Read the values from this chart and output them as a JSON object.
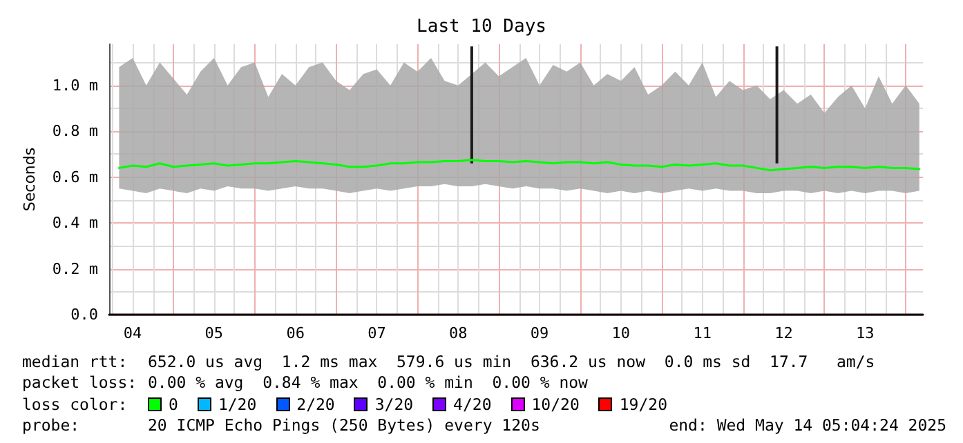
{
  "chart_data": {
    "type": "line",
    "title": "Last 10 Days",
    "ylabel": "Seconds",
    "x": [
      "2025-05-04T08:00",
      "2025-05-04T12:00",
      "2025-05-04T16:00",
      "2025-05-04T20:00",
      "2025-05-05T00:00",
      "2025-05-05T04:00",
      "2025-05-05T08:00",
      "2025-05-05T12:00",
      "2025-05-05T16:00",
      "2025-05-05T20:00",
      "2025-05-06T00:00",
      "2025-05-06T04:00",
      "2025-05-06T08:00",
      "2025-05-06T12:00",
      "2025-05-06T16:00",
      "2025-05-06T20:00",
      "2025-05-07T00:00",
      "2025-05-07T04:00",
      "2025-05-07T08:00",
      "2025-05-07T12:00",
      "2025-05-07T16:00",
      "2025-05-07T20:00",
      "2025-05-08T00:00",
      "2025-05-08T04:00",
      "2025-05-08T08:00",
      "2025-05-08T12:00",
      "2025-05-08T16:00",
      "2025-05-08T20:00",
      "2025-05-09T00:00",
      "2025-05-09T04:00",
      "2025-05-09T08:00",
      "2025-05-09T12:00",
      "2025-05-09T16:00",
      "2025-05-09T20:00",
      "2025-05-10T00:00",
      "2025-05-10T04:00",
      "2025-05-10T08:00",
      "2025-05-10T12:00",
      "2025-05-10T16:00",
      "2025-05-10T20:00",
      "2025-05-11T00:00",
      "2025-05-11T04:00",
      "2025-05-11T08:00",
      "2025-05-11T12:00",
      "2025-05-11T16:00",
      "2025-05-11T20:00",
      "2025-05-12T00:00",
      "2025-05-12T04:00",
      "2025-05-12T08:00",
      "2025-05-12T12:00",
      "2025-05-12T16:00",
      "2025-05-12T20:00",
      "2025-05-13T00:00",
      "2025-05-13T04:00",
      "2025-05-13T08:00",
      "2025-05-13T12:00",
      "2025-05-13T16:00",
      "2025-05-13T20:00",
      "2025-05-14T00:00",
      "2025-05-14T04:00"
    ],
    "series": [
      {
        "color": "#00ff00",
        "values": [
          0.64,
          0.65,
          0.645,
          0.66,
          0.645,
          0.65,
          0.655,
          0.66,
          0.65,
          0.655,
          0.66,
          0.66,
          0.665,
          0.67,
          0.665,
          0.66,
          0.655,
          0.645,
          0.645,
          0.65,
          0.66,
          0.66,
          0.665,
          0.665,
          0.67,
          0.67,
          0.675,
          0.67,
          0.67,
          0.665,
          0.67,
          0.665,
          0.66,
          0.665,
          0.665,
          0.66,
          0.665,
          0.655,
          0.65,
          0.65,
          0.645,
          0.655,
          0.65,
          0.655,
          0.66,
          0.65,
          0.65,
          0.64,
          0.63,
          0.635,
          0.64,
          0.645,
          0.64,
          0.645,
          0.645,
          0.64,
          0.645,
          0.64,
          0.64,
          0.635
        ],
        "lower": [
          0.55,
          0.54,
          0.53,
          0.55,
          0.54,
          0.53,
          0.55,
          0.54,
          0.56,
          0.55,
          0.55,
          0.54,
          0.55,
          0.56,
          0.55,
          0.55,
          0.54,
          0.53,
          0.54,
          0.55,
          0.54,
          0.55,
          0.56,
          0.56,
          0.57,
          0.56,
          0.56,
          0.57,
          0.56,
          0.55,
          0.56,
          0.55,
          0.55,
          0.54,
          0.55,
          0.54,
          0.53,
          0.54,
          0.53,
          0.54,
          0.53,
          0.54,
          0.55,
          0.54,
          0.55,
          0.54,
          0.54,
          0.53,
          0.53,
          0.54,
          0.54,
          0.53,
          0.54,
          0.53,
          0.54,
          0.53,
          0.54,
          0.54,
          0.53,
          0.54
        ],
        "upper": [
          1.08,
          1.12,
          1.0,
          1.1,
          1.03,
          0.96,
          1.06,
          1.12,
          1.0,
          1.08,
          1.1,
          0.95,
          1.05,
          1.0,
          1.08,
          1.1,
          1.02,
          0.98,
          1.05,
          1.07,
          1.0,
          1.1,
          1.06,
          1.12,
          1.02,
          1.0,
          1.05,
          1.1,
          1.04,
          1.08,
          1.12,
          1.0,
          1.09,
          1.06,
          1.1,
          1.0,
          1.05,
          1.02,
          1.08,
          0.96,
          1.0,
          1.06,
          1.0,
          1.1,
          0.95,
          1.02,
          0.98,
          1.0,
          0.94,
          0.98,
          0.92,
          0.96,
          0.88,
          0.95,
          1.0,
          0.9,
          1.04,
          0.92,
          1.0,
          0.92
        ]
      },
      {
        "type": "bar",
        "color": "#1a1a1a",
        "x": [
          "2025-05-08T16:00",
          "2025-05-12T10:00"
        ],
        "base": [
          0.66,
          0.66
        ],
        "values": [
          0.51,
          0.51
        ]
      }
    ],
    "xlim": [
      "2025-05-04T05:04",
      "2025-05-14T05:04"
    ],
    "xticks": [
      {
        "value": "2025-05-04T06:00",
        "label": null
      },
      {
        "value": "2025-05-04T12:00",
        "label": "04"
      },
      {
        "value": "2025-05-04T18:00",
        "label": null
      },
      {
        "value": "2025-05-05T00:00",
        "label": null
      },
      {
        "value": "2025-05-05T06:00",
        "label": null
      },
      {
        "value": "2025-05-05T12:00",
        "label": "05"
      },
      {
        "value": "2025-05-05T18:00",
        "label": null
      },
      {
        "value": "2025-05-06T00:00",
        "label": null
      },
      {
        "value": "2025-05-06T06:00",
        "label": null
      },
      {
        "value": "2025-05-06T12:00",
        "label": "06"
      },
      {
        "value": "2025-05-06T18:00",
        "label": null
      },
      {
        "value": "2025-05-07T00:00",
        "label": null
      },
      {
        "value": "2025-05-07T06:00",
        "label": null
      },
      {
        "value": "2025-05-07T12:00",
        "label": "07"
      },
      {
        "value": "2025-05-07T18:00",
        "label": null
      },
      {
        "value": "2025-05-08T00:00",
        "label": null
      },
      {
        "value": "2025-05-08T06:00",
        "label": null
      },
      {
        "value": "2025-05-08T12:00",
        "label": "08"
      },
      {
        "value": "2025-05-08T18:00",
        "label": null
      },
      {
        "value": "2025-05-09T00:00",
        "label": null
      },
      {
        "value": "2025-05-09T06:00",
        "label": null
      },
      {
        "value": "2025-05-09T12:00",
        "label": "09"
      },
      {
        "value": "2025-05-09T18:00",
        "label": null
      },
      {
        "value": "2025-05-10T00:00",
        "label": null
      },
      {
        "value": "2025-05-10T06:00",
        "label": null
      },
      {
        "value": "2025-05-10T12:00",
        "label": "10"
      },
      {
        "value": "2025-05-10T18:00",
        "label": null
      },
      {
        "value": "2025-05-11T00:00",
        "label": null
      },
      {
        "value": "2025-05-11T06:00",
        "label": null
      },
      {
        "value": "2025-05-11T12:00",
        "label": "11"
      },
      {
        "value": "2025-05-11T18:00",
        "label": null
      },
      {
        "value": "2025-05-12T00:00",
        "label": null
      },
      {
        "value": "2025-05-12T06:00",
        "label": null
      },
      {
        "value": "2025-05-12T12:00",
        "label": "12"
      },
      {
        "value": "2025-05-12T18:00",
        "label": null
      },
      {
        "value": "2025-05-13T00:00",
        "label": null
      },
      {
        "value": "2025-05-13T06:00",
        "label": null
      },
      {
        "value": "2025-05-13T12:00",
        "label": "13"
      },
      {
        "value": "2025-05-13T18:00",
        "label": null
      },
      {
        "value": "2025-05-14T00:00",
        "label": null
      }
    ],
    "ylim": [
      0,
      1.18
    ],
    "yticks": [
      {
        "value": 0,
        "label": "0.0"
      },
      {
        "value": 0.1,
        "label": null
      },
      {
        "value": 0.2,
        "label": "0.2 m"
      },
      {
        "value": 0.3,
        "label": null
      },
      {
        "value": 0.4,
        "label": "0.4 m"
      },
      {
        "value": 0.5,
        "label": null
      },
      {
        "value": 0.6,
        "label": "0.6 m"
      },
      {
        "value": 0.7,
        "label": null
      },
      {
        "value": 0.8,
        "label": "0.8 m"
      },
      {
        "value": 0.9,
        "label": null
      },
      {
        "value": 1.0,
        "label": "1.0 m"
      },
      {
        "value": 1.1,
        "label": null
      }
    ],
    "grid": true,
    "marker": "none",
    "line_style": "solid",
    "annotations": [
      "median rtt:",
      "652.0 us avg  1.2 ms max  579.6 us min  636.2 us now  0.0 ms sd  17.7   am/s",
      "packet loss:",
      "0.00 % avg  0.84 % max  0.00 % min  0.00 % now",
      "loss color:",
      "0",
      "1/20",
      "2/20",
      "3/20",
      "4/20",
      "10/20",
      "19/20",
      "probe:",
      "20 ICMP Echo Pings (250 Bytes) every 120s",
      "end: Wed May 14 05:04:24 2025"
    ]
  }
}
